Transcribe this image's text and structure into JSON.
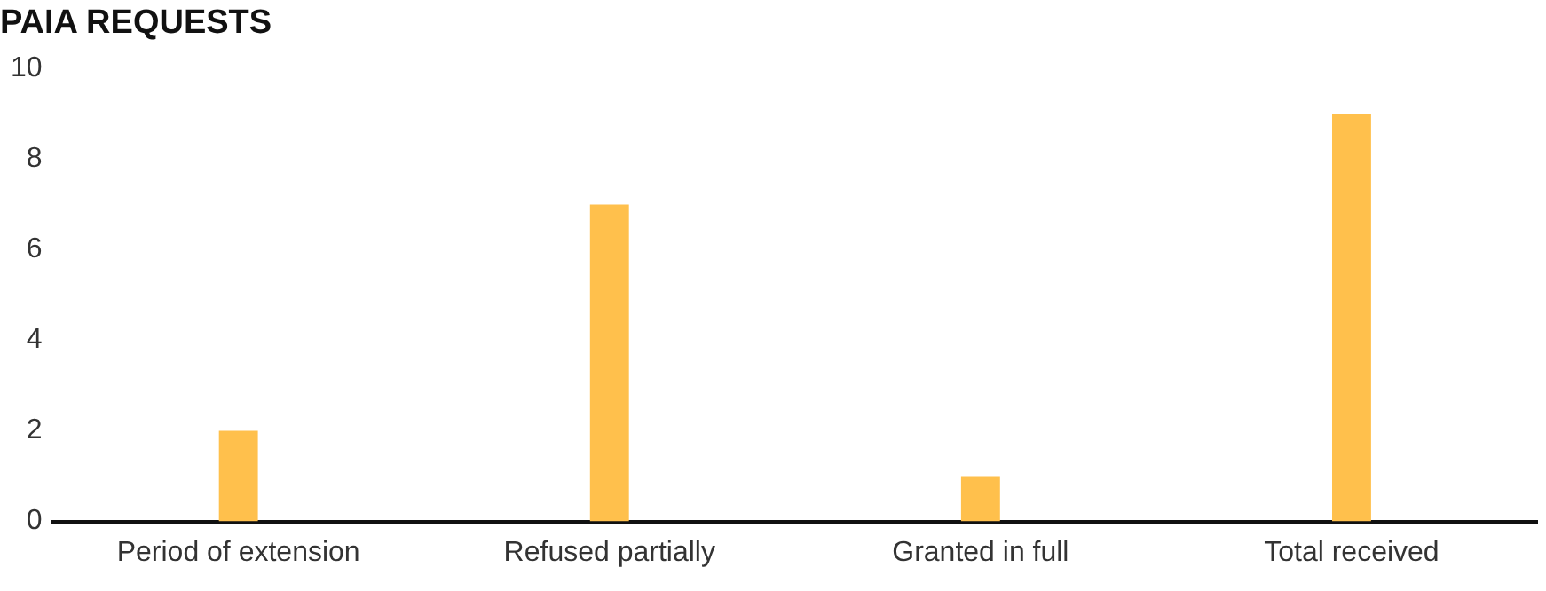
{
  "chart_data": {
    "type": "bar",
    "title": "PAIA REQUESTS",
    "categories": [
      "Period of extension",
      "Refused partially",
      "Granted in full",
      "Total received"
    ],
    "values": [
      2,
      7,
      1,
      9
    ],
    "color": "#ffc04c",
    "ylim": [
      0,
      10
    ],
    "yticks": [
      0,
      2,
      4,
      6,
      8,
      10
    ],
    "grid": false
  }
}
